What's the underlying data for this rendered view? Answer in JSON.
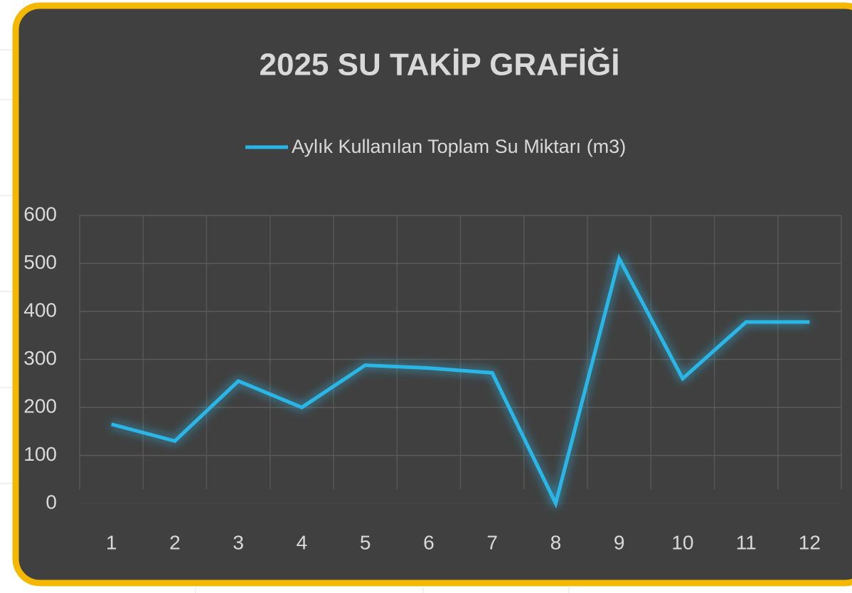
{
  "chart_data": {
    "type": "line",
    "title": "2025 SU TAKİP GRAFİĞİ",
    "categories": [
      "1",
      "2",
      "3",
      "4",
      "5",
      "6",
      "7",
      "8",
      "9",
      "10",
      "11",
      "12"
    ],
    "series": [
      {
        "name": "Aylık Kullanılan Toplam Su Miktarı (m3)",
        "color": "#29b6e6",
        "values": [
          165,
          130,
          255,
          200,
          288,
          282,
          272,
          0,
          510,
          260,
          378,
          378
        ]
      }
    ],
    "ylim": [
      0,
      600
    ],
    "yticks": [
      0,
      100,
      200,
      300,
      400,
      500,
      600
    ],
    "grid": true,
    "legend": "top"
  }
}
